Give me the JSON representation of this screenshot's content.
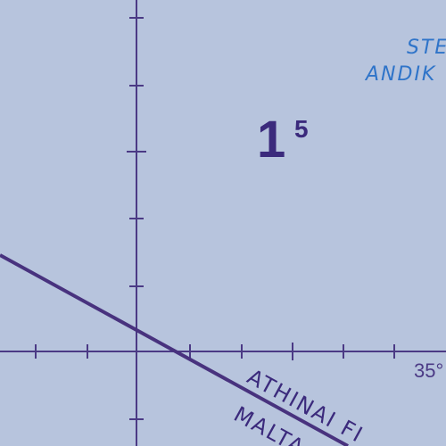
{
  "colors": {
    "background": "#b7c4dd",
    "graticule": "#4b3a85",
    "boundary": "#48327e",
    "place_label": "#2f74c9",
    "area_label": "#3b2a7c"
  },
  "place_labels": {
    "line1": "STE",
    "line2": "ANDIK"
  },
  "area_label": {
    "main": "1",
    "superscript": "5"
  },
  "meridian_label": "35°",
  "fir_labels": {
    "line1": "ATHINAI FI",
    "line2": "MALTA"
  }
}
